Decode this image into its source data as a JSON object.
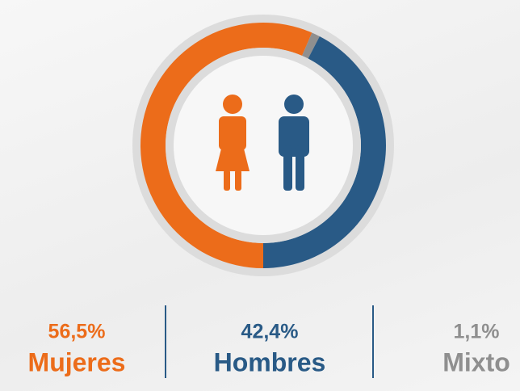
{
  "chart_data": {
    "type": "donut",
    "categories": [
      "Mujeres",
      "Hombres",
      "Mixto"
    ],
    "values": [
      56.5,
      42.4,
      1.1
    ],
    "value_labels": [
      "56,5%",
      "42,4%",
      "1,1%"
    ],
    "colors": [
      "#ec6c1a",
      "#295a86",
      "#8f8f8f"
    ]
  }
}
